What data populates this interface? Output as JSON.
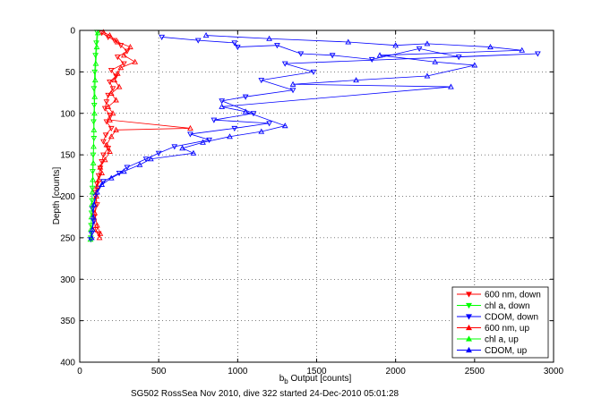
{
  "chart_data": {
    "type": "scatter",
    "title": "",
    "xlabel": "b",
    "xlabel_sub": "b",
    "xlabel_rest": " Output [counts]",
    "ylabel": "Depth [counts]",
    "caption": "SG502 RossSea Nov 2010, dive 322 started 24-Dec-2010 05:01:28",
    "xlim": [
      0,
      3000
    ],
    "ylim": [
      0,
      400
    ],
    "y_reversed": true,
    "grid": true,
    "legend_position": "bottom-right",
    "x_ticks": [
      "0",
      "500",
      "1000",
      "1500",
      "2000",
      "2500",
      "3000"
    ],
    "y_ticks": [
      "0",
      "50",
      "100",
      "150",
      "200",
      "250",
      "300",
      "350",
      "400"
    ],
    "series": [
      {
        "name": "600 nm, down",
        "color": "#ff0000",
        "marker": "triangle-down",
        "points": [
          [
            140,
            3
          ],
          [
            180,
            8
          ],
          [
            220,
            12
          ],
          [
            260,
            18
          ],
          [
            300,
            25
          ],
          [
            240,
            32
          ],
          [
            280,
            40
          ],
          [
            200,
            48
          ],
          [
            230,
            55
          ],
          [
            190,
            62
          ],
          [
            210,
            70
          ],
          [
            180,
            78
          ],
          [
            170,
            86
          ],
          [
            160,
            94
          ],
          [
            190,
            102
          ],
          [
            170,
            110
          ],
          [
            200,
            118
          ],
          [
            165,
            126
          ],
          [
            150,
            134
          ],
          [
            180,
            142
          ],
          [
            150,
            150
          ],
          [
            140,
            158
          ],
          [
            130,
            166
          ],
          [
            120,
            175
          ],
          [
            110,
            185
          ],
          [
            100,
            195
          ],
          [
            110,
            210
          ],
          [
            90,
            225
          ],
          [
            100,
            240
          ],
          [
            120,
            245
          ]
        ]
      },
      {
        "name": "chl a, down",
        "color": "#00ff00",
        "marker": "triangle-down",
        "points": [
          [
            110,
            2
          ],
          [
            105,
            15
          ],
          [
            100,
            30
          ],
          [
            95,
            50
          ],
          [
            90,
            70
          ],
          [
            92,
            90
          ],
          [
            88,
            110
          ],
          [
            90,
            130
          ],
          [
            85,
            150
          ],
          [
            82,
            170
          ],
          [
            80,
            190
          ],
          [
            78,
            205
          ],
          [
            75,
            220
          ],
          [
            72,
            235
          ],
          [
            70,
            250
          ]
        ]
      },
      {
        "name": "CDOM, down",
        "color": "#0000ff",
        "marker": "triangle-down",
        "points": [
          [
            520,
            8
          ],
          [
            750,
            12
          ],
          [
            980,
            15
          ],
          [
            1000,
            20
          ],
          [
            1250,
            18
          ],
          [
            1400,
            28
          ],
          [
            1600,
            30
          ],
          [
            1850,
            35
          ],
          [
            2150,
            22
          ],
          [
            2400,
            32
          ],
          [
            2900,
            28
          ],
          [
            1300,
            40
          ],
          [
            1480,
            50
          ],
          [
            1150,
            60
          ],
          [
            1350,
            72
          ],
          [
            1050,
            80
          ],
          [
            900,
            85
          ],
          [
            1100,
            100
          ],
          [
            850,
            108
          ],
          [
            1200,
            112
          ],
          [
            980,
            118
          ],
          [
            700,
            125
          ],
          [
            820,
            132
          ],
          [
            600,
            140
          ],
          [
            500,
            148
          ],
          [
            420,
            155
          ],
          [
            300,
            165
          ],
          [
            250,
            172
          ],
          [
            150,
            182
          ],
          [
            120,
            190
          ],
          [
            100,
            200
          ],
          [
            80,
            215
          ],
          [
            90,
            230
          ],
          [
            75,
            245
          ],
          [
            70,
            252
          ]
        ]
      },
      {
        "name": "600 nm, up",
        "color": "#ff0000",
        "marker": "triangle-up",
        "points": [
          [
            150,
            2
          ],
          [
            190,
            6
          ],
          [
            240,
            14
          ],
          [
            320,
            20
          ],
          [
            280,
            30
          ],
          [
            350,
            38
          ],
          [
            260,
            45
          ],
          [
            240,
            52
          ],
          [
            220,
            60
          ],
          [
            250,
            68
          ],
          [
            200,
            76
          ],
          [
            230,
            84
          ],
          [
            180,
            92
          ],
          [
            210,
            100
          ],
          [
            190,
            108
          ],
          [
            700,
            118
          ],
          [
            230,
            120
          ],
          [
            200,
            128
          ],
          [
            170,
            138
          ],
          [
            190,
            146
          ],
          [
            160,
            156
          ],
          [
            130,
            165
          ],
          [
            140,
            172
          ],
          [
            120,
            180
          ],
          [
            110,
            188
          ],
          [
            105,
            200
          ],
          [
            95,
            220
          ],
          [
            110,
            235
          ],
          [
            130,
            245
          ],
          [
            125,
            250
          ]
        ]
      },
      {
        "name": "chl a, up",
        "color": "#00ff00",
        "marker": "triangle-up",
        "points": [
          [
            115,
            3
          ],
          [
            108,
            20
          ],
          [
            102,
            40
          ],
          [
            98,
            60
          ],
          [
            95,
            80
          ],
          [
            93,
            100
          ],
          [
            90,
            120
          ],
          [
            88,
            140
          ],
          [
            86,
            160
          ],
          [
            83,
            180
          ],
          [
            80,
            195
          ],
          [
            77,
            210
          ],
          [
            74,
            225
          ],
          [
            71,
            240
          ],
          [
            68,
            252
          ]
        ]
      },
      {
        "name": "CDOM, up",
        "color": "#0000ff",
        "marker": "triangle-up",
        "points": [
          [
            800,
            6
          ],
          [
            1200,
            10
          ],
          [
            1700,
            14
          ],
          [
            2000,
            18
          ],
          [
            2200,
            16
          ],
          [
            2600,
            20
          ],
          [
            2800,
            24
          ],
          [
            1900,
            30
          ],
          [
            2250,
            38
          ],
          [
            2500,
            42
          ],
          [
            2200,
            55
          ],
          [
            1750,
            60
          ],
          [
            1350,
            65
          ],
          [
            2350,
            68
          ],
          [
            900,
            92
          ],
          [
            1050,
            98
          ],
          [
            1300,
            115
          ],
          [
            1150,
            122
          ],
          [
            950,
            128
          ],
          [
            780,
            135
          ],
          [
            650,
            142
          ],
          [
            720,
            148
          ],
          [
            450,
            155
          ],
          [
            380,
            162
          ],
          [
            280,
            170
          ],
          [
            200,
            178
          ],
          [
            140,
            186
          ],
          [
            110,
            195
          ],
          [
            90,
            210
          ],
          [
            85,
            225
          ],
          [
            80,
            240
          ],
          [
            75,
            250
          ]
        ]
      }
    ]
  }
}
